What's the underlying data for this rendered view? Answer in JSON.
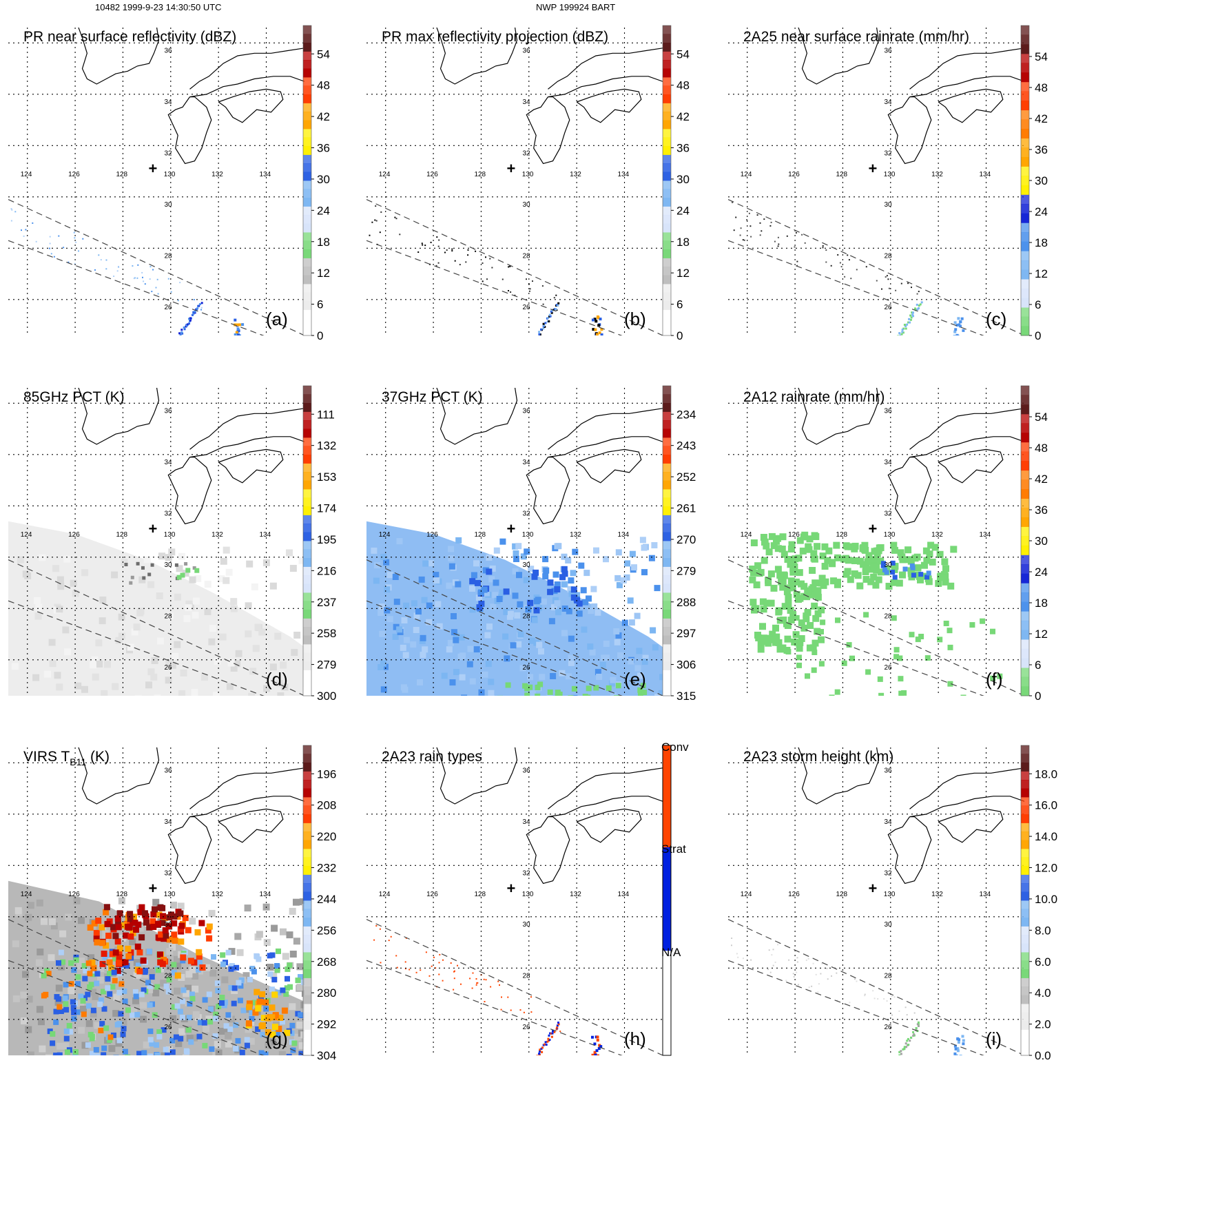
{
  "header": {
    "left": "10482 1999-9-23 14:30:50 UTC",
    "center": "NWP 199924 BART"
  },
  "map": {
    "lon_labels": [
      "124",
      "126",
      "128",
      "130",
      "132",
      "134"
    ],
    "lat_labels": [
      "36",
      "34",
      "32",
      "30",
      "28",
      "26"
    ],
    "center_marker": "+"
  },
  "colors": {
    "grays": [
      "#ffffff",
      "#ececec",
      "#d6d6d6",
      "#bdbdbd",
      "#a3a3a3"
    ],
    "green": "#77d877",
    "blues": [
      "#d8e4fa",
      "#aecff7",
      "#7cb6f2",
      "#4b91ec",
      "#2a5fe3",
      "#1424d6"
    ],
    "yellow": "#fff000",
    "oranges": [
      "#ffd400",
      "#ffa500",
      "#ff7a00"
    ],
    "reds": [
      "#ff3c00",
      "#e41a00",
      "#b50000",
      "#861010",
      "#5a1818"
    ],
    "rain_types": [
      "#ffffff",
      "#0020e0",
      "#ff4400"
    ]
  },
  "panels": [
    {
      "id": "a",
      "title": "PR near surface reflectivity (dBZ)",
      "label": "(a)",
      "ticks": [
        "0",
        "6",
        "12",
        "18",
        "24",
        "30",
        "36",
        "42",
        "48",
        "54"
      ],
      "reverse": false
    },
    {
      "id": "b",
      "title": "PR max reflectivity projection (dBZ)",
      "label": "(b)",
      "ticks": [
        "0",
        "6",
        "12",
        "18",
        "24",
        "30",
        "36",
        "42",
        "48",
        "54"
      ],
      "reverse": false
    },
    {
      "id": "c",
      "title": "2A25 near surface rainrate (mm/hr)",
      "label": "(c)",
      "ticks": [
        "0",
        "6",
        "12",
        "18",
        "24",
        "30",
        "36",
        "42",
        "48",
        "54"
      ],
      "reverse": false
    },
    {
      "id": "d",
      "title": "85GHz PCT (K)",
      "label": "(d)",
      "ticks": [
        "300",
        "279",
        "258",
        "237",
        "216",
        "195",
        "174",
        "153",
        "132",
        "111"
      ],
      "reverse": true
    },
    {
      "id": "e",
      "title": "37GHz PCT (K)",
      "label": "(e)",
      "ticks": [
        "315",
        "306",
        "297",
        "288",
        "279",
        "270",
        "261",
        "252",
        "243",
        "234"
      ],
      "reverse": true
    },
    {
      "id": "f",
      "title": "2A12 rainrate (mm/hr)",
      "label": "(f)",
      "ticks": [
        "0",
        "6",
        "12",
        "18",
        "24",
        "30",
        "36",
        "42",
        "48",
        "54"
      ],
      "reverse": false
    },
    {
      "id": "g",
      "title": "VIRS T",
      "title_sub": "B11",
      "title_suffix": " (K)",
      "label": "(g)",
      "ticks": [
        "304",
        "292",
        "280",
        "268",
        "256",
        "244",
        "232",
        "220",
        "208",
        "196"
      ],
      "reverse": true
    },
    {
      "id": "h",
      "title": "2A23 rain types",
      "label": "(h)",
      "ticks": [
        "N/A",
        "Strat",
        "Conv"
      ],
      "reverse": false
    },
    {
      "id": "i",
      "title": "2A23 storm height (km)",
      "label": "(i)",
      "ticks": [
        "0.0",
        "2.0",
        "4.0",
        "6.0",
        "8.0",
        "10.0",
        "12.0",
        "14.0",
        "16.0",
        "18.0"
      ],
      "reverse": false
    }
  ]
}
